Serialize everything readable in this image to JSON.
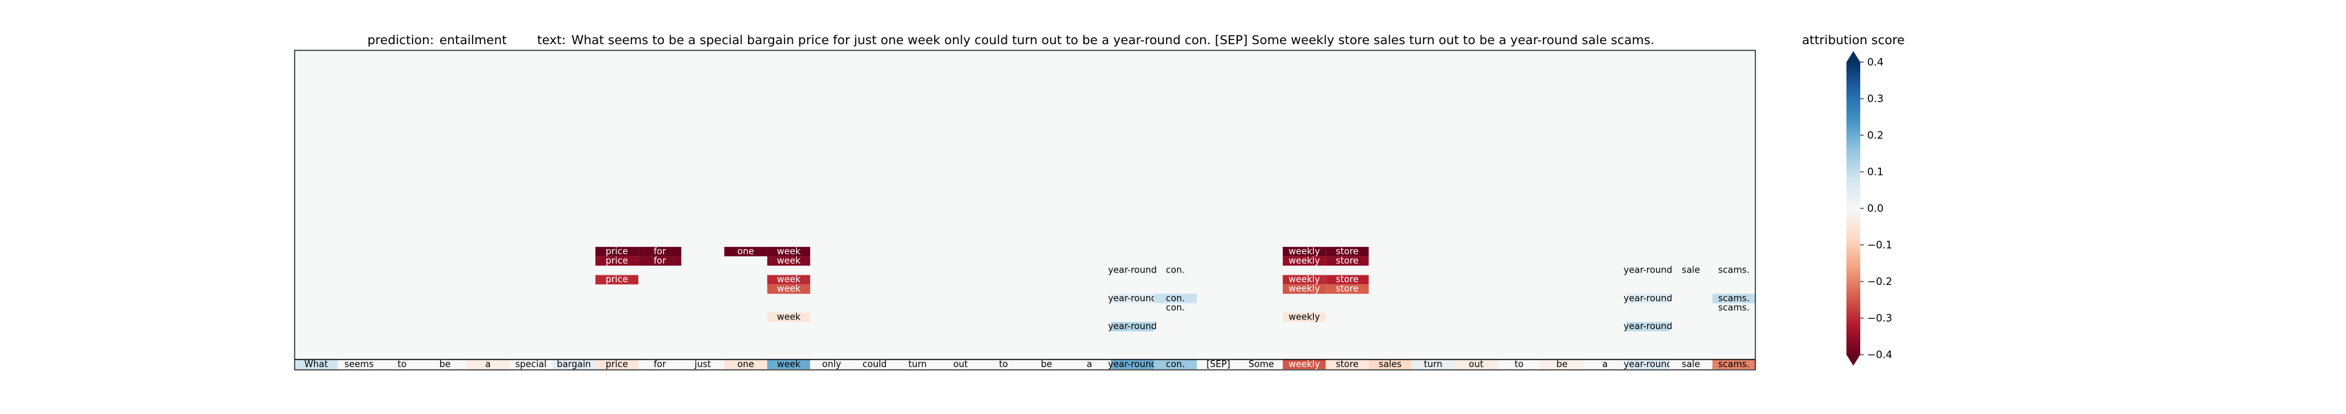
{
  "chart_data": {
    "type": "heatmap",
    "title": {
      "prediction_label": "prediction:",
      "prediction": "entailment",
      "text_label": "text:",
      "text": "What seems to be a special bargain price for just one week only could turn out to be a year-round con. [SEP] Some weekly store sales turn out to be a year-round sale scams."
    },
    "tokens": [
      "What",
      "seems",
      "to",
      "be",
      "a",
      "special",
      "bargain",
      "price",
      "for",
      "just",
      "one",
      "week",
      "only",
      "could",
      "turn",
      "out",
      "to",
      "be",
      "a",
      "year-round",
      "con.",
      "[SEP]",
      "Some",
      "weekly",
      "store",
      "sales",
      "turn",
      "out",
      "to",
      "be",
      "a",
      "year-round",
      "sale",
      "scams."
    ],
    "base_row_scores": [
      0.08,
      0.0,
      0.0,
      0.0,
      -0.03,
      0.0,
      0.04,
      -0.05,
      0.0,
      0.0,
      -0.05,
      0.2,
      0.0,
      0.0,
      0.0,
      0.0,
      0.0,
      0.0,
      0.0,
      0.2,
      0.15,
      0.0,
      0.0,
      -0.25,
      -0.05,
      -0.08,
      0.03,
      -0.03,
      0.0,
      -0.02,
      0.0,
      0.06,
      0.0,
      -0.2
    ],
    "rows": [
      {
        "level": 12,
        "cells": [
          [
            7,
            -0.4
          ],
          [
            8,
            -0.4
          ],
          [
            10,
            -0.4
          ],
          [
            11,
            -0.4
          ],
          [
            23,
            -0.4
          ],
          [
            24,
            -0.4
          ]
        ]
      },
      {
        "level": 11,
        "cells": [
          [
            7,
            -0.36
          ],
          [
            8,
            -0.38
          ],
          [
            11,
            -0.37
          ],
          [
            23,
            -0.35
          ],
          [
            24,
            -0.36
          ]
        ]
      },
      {
        "level": 10,
        "cells": [
          [
            19,
            0.0
          ],
          [
            20,
            0.0
          ],
          [
            31,
            0.0
          ],
          [
            32,
            0.0
          ],
          [
            33,
            0.0
          ]
        ]
      },
      {
        "level": 9,
        "cells": [
          [
            7,
            -0.3
          ],
          [
            11,
            -0.3
          ],
          [
            23,
            -0.3
          ],
          [
            24,
            -0.31
          ]
        ]
      },
      {
        "level": 8,
        "cells": [
          [
            11,
            -0.25
          ],
          [
            23,
            -0.25
          ],
          [
            24,
            -0.24
          ]
        ]
      },
      {
        "level": 7,
        "cells": [
          [
            19,
            0.04
          ],
          [
            20,
            0.09
          ],
          [
            31,
            0.05
          ],
          [
            33,
            0.1
          ]
        ]
      },
      {
        "level": 6,
        "cells": [
          [
            20,
            0.0
          ],
          [
            33,
            0.0
          ]
        ]
      },
      {
        "level": 5,
        "cells": [
          [
            11,
            -0.05
          ],
          [
            23,
            -0.05
          ]
        ]
      },
      {
        "level": 4,
        "cells": [
          [
            19,
            0.12
          ],
          [
            31,
            0.1
          ]
        ]
      }
    ],
    "cell_labels": {
      "12": [
        "price",
        "for",
        "one",
        "week",
        "weekly",
        "store"
      ],
      "11": [
        "price",
        "for",
        "week",
        "weekly",
        "store"
      ],
      "10": [
        "year-round",
        "con.",
        "year-round",
        "sale",
        "scams."
      ],
      "9": [
        "price",
        "week",
        "weekly",
        "store"
      ],
      "8": [
        "week",
        "weekly",
        "store"
      ],
      "7": [
        "year-round",
        "con.",
        "year-round",
        "scams."
      ],
      "6": [
        "con.",
        "scams."
      ],
      "5": [
        "week",
        "weekly"
      ],
      "4": [
        "year-round",
        "year-round"
      ]
    },
    "colorbar": {
      "label": "attribution score",
      "min": -0.4,
      "max": 0.4,
      "ticks": [
        "0.4",
        "0.3",
        "0.2",
        "0.1",
        "0.0",
        "−0.1",
        "−0.2",
        "−0.3",
        "−0.4"
      ],
      "tick_values": [
        0.4,
        0.3,
        0.2,
        0.1,
        0.0,
        -0.1,
        -0.2,
        -0.3,
        -0.4
      ],
      "colormap": "RdBu"
    }
  }
}
